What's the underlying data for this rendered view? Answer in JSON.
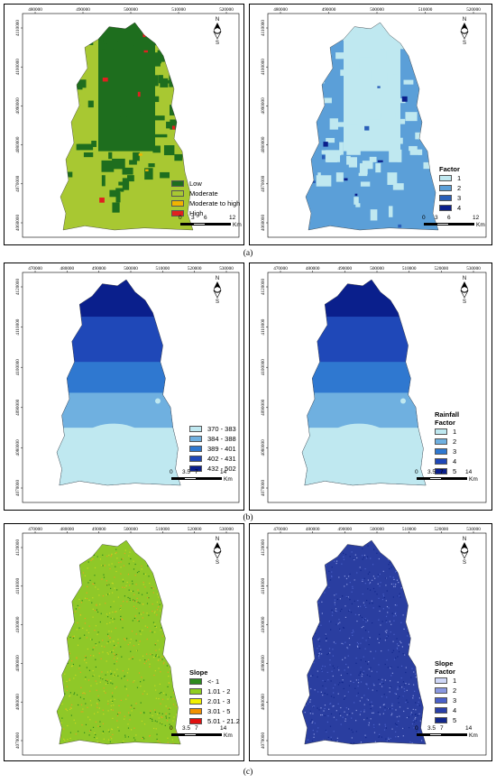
{
  "map_data": {
    "figure_captions": [
      "(a)",
      "(b)",
      "(c)"
    ],
    "north_labels": {
      "n": "N",
      "s": "S"
    },
    "panels": [
      {
        "id": "a-left",
        "x_ticks": [
          "480000",
          "490000",
          "500000",
          "510000",
          "520000"
        ],
        "y_ticks": [
          "4110000",
          "4100000",
          "4090000",
          "4080000",
          "4070000",
          "4060000"
        ],
        "legend_title": "",
        "legend": [
          {
            "label": "Low",
            "color": "#1e6e1e"
          },
          {
            "label": "Moderate",
            "color": "#a8c832"
          },
          {
            "label": "Moderate to high",
            "color": "#f0b400"
          },
          {
            "label": "High",
            "color": "#e02020"
          }
        ],
        "scale": {
          "labels": [
            "0",
            "3",
            "6",
            "12"
          ],
          "unit": "Km"
        },
        "base_color": "#a8c832",
        "patch_color": "#1e6e1e"
      },
      {
        "id": "a-right",
        "x_ticks": [
          "480000",
          "490000",
          "500000",
          "510000",
          "520000"
        ],
        "y_ticks": [
          "4110000",
          "4100000",
          "4090000",
          "4080000",
          "4070000",
          "4060000"
        ],
        "legend_title": "Factor",
        "legend": [
          {
            "label": "1",
            "color": "#bfe8f0"
          },
          {
            "label": "2",
            "color": "#5b9fd8"
          },
          {
            "label": "3",
            "color": "#2a5fb8"
          },
          {
            "label": "4",
            "color": "#0a1f8c"
          }
        ],
        "scale": {
          "labels": [
            "0",
            "3",
            "6",
            "12"
          ],
          "unit": "Km"
        },
        "base_color": "#5b9fd8",
        "patch_color": "#bfe8f0"
      },
      {
        "id": "b-left",
        "x_ticks": [
          "470000",
          "480000",
          "490000",
          "500000",
          "510000",
          "520000",
          "530000"
        ],
        "y_ticks": [
          "4120000",
          "4110000",
          "4100000",
          "4090000",
          "4080000",
          "4070000"
        ],
        "legend_title": "",
        "legend": [
          {
            "label": "370 - 383",
            "color": "#bfe8f0"
          },
          {
            "label": "384 - 388",
            "color": "#6fb0e0"
          },
          {
            "label": "389 - 401",
            "color": "#2f78d0"
          },
          {
            "label": "402 - 431",
            "color": "#1f48b8"
          },
          {
            "label": "432 - 502",
            "color": "#0a1f8c"
          }
        ],
        "scale": {
          "labels": [
            "0",
            "3.5",
            "7",
            "14"
          ],
          "unit": "Km"
        }
      },
      {
        "id": "b-right",
        "x_ticks": [
          "470000",
          "480000",
          "490000",
          "500000",
          "510000",
          "520000",
          "530000"
        ],
        "y_ticks": [
          "4120000",
          "4110000",
          "4100000",
          "4090000",
          "4080000",
          "4070000"
        ],
        "legend_title": "Rainfall Factor",
        "legend": [
          {
            "label": "1",
            "color": "#bfe8f0"
          },
          {
            "label": "2",
            "color": "#6fb0e0"
          },
          {
            "label": "3",
            "color": "#2f78d0"
          },
          {
            "label": "4",
            "color": "#1f48b8"
          },
          {
            "label": "5",
            "color": "#0a1f8c"
          }
        ],
        "scale": {
          "labels": [
            "0",
            "3.5",
            "7",
            "14"
          ],
          "unit": "Km"
        }
      },
      {
        "id": "c-left",
        "x_ticks": [
          "470000",
          "480000",
          "490000",
          "500000",
          "510000",
          "520000",
          "530000"
        ],
        "y_ticks": [
          "4120000",
          "4110000",
          "4100000",
          "4090000",
          "4080000",
          "4070000"
        ],
        "legend_title": "Slope",
        "legend": [
          {
            "label": "<- 1",
            "color": "#2e8b1e"
          },
          {
            "label": "1.01 - 2",
            "color": "#8fce1e"
          },
          {
            "label": "2.01 - 3",
            "color": "#f0f000"
          },
          {
            "label": "3.01 - 5",
            "color": "#f09000"
          },
          {
            "label": "5.01 - 21.2",
            "color": "#e01010"
          }
        ],
        "scale": {
          "labels": [
            "0",
            "3.5",
            "7",
            "14"
          ],
          "unit": "Km"
        },
        "base_color": "#8fc828",
        "speckle_colors": [
          "#2e8b1e",
          "#c8d820",
          "#e8a020"
        ]
      },
      {
        "id": "c-right",
        "x_ticks": [
          "470000",
          "480000",
          "490000",
          "500000",
          "510000",
          "520000",
          "530000"
        ],
        "y_ticks": [
          "4120000",
          "4110000",
          "4100000",
          "4090000",
          "4080000",
          "4070000"
        ],
        "legend_title": "Slope Factor",
        "legend": [
          {
            "label": "1",
            "color": "#d0d8f8"
          },
          {
            "label": "2",
            "color": "#8a98e0"
          },
          {
            "label": "3",
            "color": "#4a60c8"
          },
          {
            "label": "4",
            "color": "#2a40a8"
          },
          {
            "label": "5",
            "color": "#12288c"
          }
        ],
        "scale": {
          "labels": [
            "0",
            "3.5",
            "7",
            "14"
          ],
          "unit": "Km"
        },
        "base_color": "#2a3ea0",
        "speckle_colors": [
          "#8a98e0",
          "#12288c",
          "#4a60c8"
        ]
      }
    ]
  }
}
